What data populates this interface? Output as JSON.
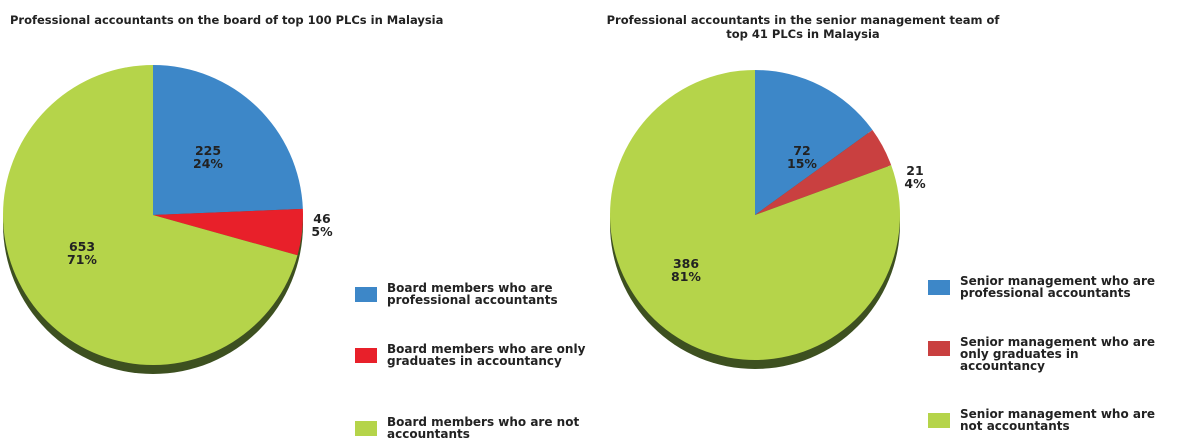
{
  "chart_data": [
    {
      "type": "pie",
      "title": "Professional accountants on the board of top 100 PLCs in Malaysia",
      "categories": [
        "Board members who are professional accountants",
        "Board members who are only graduates in accountancy",
        "Board members who are not accountants"
      ],
      "values": [
        225,
        46,
        653
      ],
      "percent_labels": [
        "24%",
        "5%",
        "71%"
      ],
      "colors": [
        "#3d87c8",
        "#e8202a",
        "#b5d44a"
      ]
    },
    {
      "type": "pie",
      "title": "Professional accountants in the senior management team of top 41 PLCs in Malaysia",
      "categories": [
        "Senior management who are professional accountants",
        "Senior management who are only graduates in accountancy",
        "Senior management who are not accountants"
      ],
      "values": [
        72,
        21,
        386
      ],
      "percent_labels": [
        "15%",
        "4%",
        "81%"
      ],
      "colors": [
        "#3d87c8",
        "#c94040",
        "#b5d44a"
      ]
    }
  ]
}
